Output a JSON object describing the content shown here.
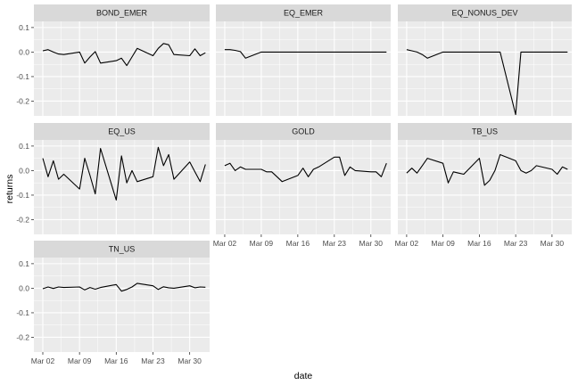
{
  "chart_data": {
    "type": "line",
    "xlabel": "date",
    "ylabel": "returns",
    "ylim": [
      -0.26,
      0.125
    ],
    "y_ticks": [
      0.1,
      0.0,
      -0.1,
      -0.2
    ],
    "y_tick_labels": [
      "0.1",
      "0.0",
      "-0.1",
      "-0.2"
    ],
    "x_range_days": [
      0.3,
      33.8
    ],
    "x_ticks": [
      {
        "label": "Mar 02",
        "day": 2
      },
      {
        "label": "Mar 09",
        "day": 9
      },
      {
        "label": "Mar 16",
        "day": 16
      },
      {
        "label": "Mar 23",
        "day": 23
      },
      {
        "label": "Mar 30",
        "day": 30
      }
    ],
    "grid": true,
    "colors": {
      "panel_bg": "#ebebeb",
      "strip_bg": "#d9d9d9",
      "grid": "#ffffff",
      "line": "#000000"
    },
    "panels": [
      {
        "name": "BOND_EMER",
        "x": [
          2,
          3,
          4,
          5,
          6,
          9,
          10,
          11,
          12,
          13,
          16,
          17,
          18,
          19,
          20,
          23,
          24,
          25,
          26,
          27,
          30,
          31,
          32,
          33
        ],
        "y": [
          0.005,
          0.01,
          0.0,
          -0.008,
          -0.01,
          0.0,
          -0.045,
          -0.02,
          0.002,
          -0.045,
          -0.035,
          -0.025,
          -0.055,
          -0.02,
          0.015,
          -0.015,
          0.015,
          0.035,
          0.03,
          -0.01,
          -0.015,
          0.013,
          -0.015,
          -0.003
        ]
      },
      {
        "name": "EQ_EMER",
        "x": [
          2,
          3,
          4,
          5,
          6,
          9,
          10,
          11,
          12,
          13,
          16,
          17,
          18,
          19,
          20,
          23,
          24,
          25,
          26,
          27,
          30,
          31,
          32,
          33
        ],
        "y": [
          0.01,
          0.01,
          0.007,
          0.002,
          -0.025,
          0.0,
          0.0,
          0.0,
          0.0,
          0.0,
          0.0,
          0.0,
          0.0,
          0.0,
          0.0,
          0.0,
          0.0,
          0.0,
          0.0,
          0.0,
          0.0,
          0.0,
          0.0,
          0.0
        ]
      },
      {
        "name": "EQ_NONUS_DEV",
        "x": [
          2,
          3,
          4,
          5,
          6,
          9,
          10,
          11,
          12,
          13,
          16,
          17,
          18,
          19,
          20,
          23,
          24,
          25,
          26,
          27,
          30,
          31,
          32,
          33
        ],
        "y": [
          0.01,
          0.005,
          0.0,
          -0.01,
          -0.025,
          0.0,
          0.0,
          0.0,
          0.0,
          0.0,
          0.0,
          0.0,
          0.0,
          0.0,
          0.0,
          -0.255,
          0.0,
          0.0,
          0.0,
          0.0,
          0.0,
          0.0,
          0.0,
          0.0
        ]
      },
      {
        "name": "EQ_US",
        "x": [
          2,
          3,
          4,
          5,
          6,
          9,
          10,
          11,
          12,
          13,
          16,
          17,
          18,
          19,
          20,
          23,
          24,
          25,
          26,
          27,
          30,
          31,
          32,
          33
        ],
        "y": [
          0.05,
          -0.025,
          0.04,
          -0.035,
          -0.015,
          -0.075,
          0.05,
          -0.02,
          -0.095,
          0.09,
          -0.12,
          0.06,
          -0.05,
          0.0,
          -0.045,
          -0.025,
          0.095,
          0.02,
          0.065,
          -0.035,
          0.035,
          -0.005,
          -0.045,
          0.025
        ]
      },
      {
        "name": "GOLD",
        "x": [
          2,
          3,
          4,
          5,
          6,
          9,
          10,
          11,
          12,
          13,
          16,
          17,
          18,
          19,
          20,
          23,
          24,
          25,
          26,
          27,
          30,
          31,
          32,
          33
        ],
        "y": [
          0.02,
          0.03,
          0.0,
          0.015,
          0.005,
          0.005,
          -0.005,
          -0.005,
          -0.025,
          -0.045,
          -0.02,
          0.01,
          -0.025,
          0.005,
          0.015,
          0.055,
          0.055,
          -0.02,
          0.015,
          0.0,
          -0.005,
          -0.005,
          -0.025,
          0.03
        ]
      },
      {
        "name": "TB_US",
        "x": [
          2,
          3,
          4,
          5,
          6,
          9,
          10,
          11,
          12,
          13,
          16,
          17,
          18,
          19,
          20,
          23,
          24,
          25,
          26,
          27,
          30,
          31,
          32,
          33
        ],
        "y": [
          -0.01,
          0.01,
          -0.01,
          0.02,
          0.05,
          0.03,
          -0.05,
          -0.005,
          -0.01,
          -0.015,
          0.05,
          -0.06,
          -0.04,
          0.0,
          0.065,
          0.04,
          0.0,
          -0.01,
          0.0,
          0.02,
          0.005,
          -0.015,
          0.015,
          0.005
        ]
      },
      {
        "name": "TN_US",
        "x": [
          2,
          3,
          4,
          5,
          6,
          9,
          10,
          11,
          12,
          13,
          16,
          17,
          18,
          19,
          20,
          23,
          24,
          25,
          26,
          27,
          30,
          31,
          32,
          33
        ],
        "y": [
          -0.002,
          0.005,
          -0.001,
          0.005,
          0.003,
          0.005,
          -0.007,
          0.003,
          -0.004,
          0.003,
          0.015,
          -0.012,
          -0.005,
          0.005,
          0.02,
          0.01,
          -0.005,
          0.006,
          0.002,
          0.0,
          0.01,
          0.002,
          0.005,
          0.004
        ]
      }
    ]
  }
}
